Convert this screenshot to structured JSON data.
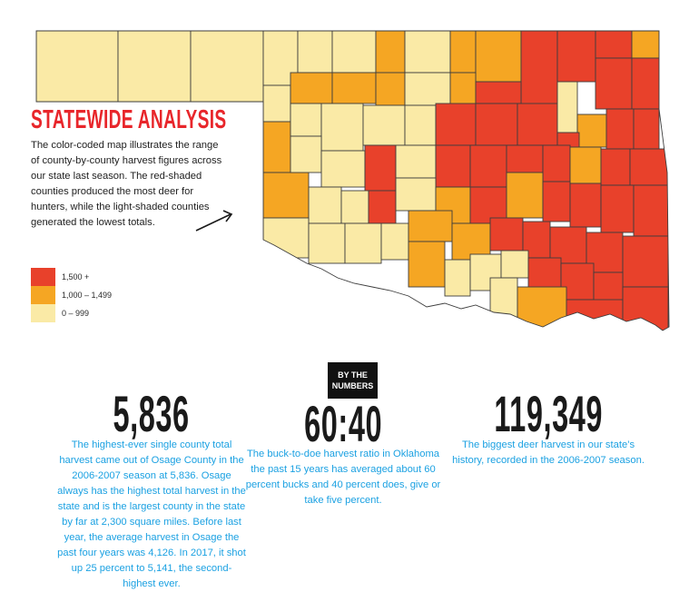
{
  "title": "STATEWIDE ANALYSIS",
  "description": "The color-coded map illustrates the range of county-by-county harvest figures across our state last season. The red-shaded counties produced the most deer for hunters, while the light-shaded counties generated the lowest totals.",
  "map": {
    "state": "Oklahoma",
    "colors": {
      "high": "#e8412b",
      "mid": "#f5a623",
      "low": "#faeaa6"
    }
  },
  "legend": [
    {
      "label": "1,500 +",
      "color": "#e8412b"
    },
    {
      "label": "1,000 – 1,499",
      "color": "#f5a623"
    },
    {
      "label": "0 – 999",
      "color": "#faeaa6"
    }
  ],
  "badge": {
    "line1": "BY THE",
    "line2": "NUMBERS"
  },
  "stats": [
    {
      "value": "5,836",
      "text": "The highest-ever single county total harvest came out of Osage County in the 2006-2007 season at 5,836. Osage always has the highest total harvest in the state and is the largest county in the state by far at 2,300 square miles. Before last year, the average harvest in Osage the past four years was 4,126. In 2017, it shot up 25 percent to 5,141, the second-highest ever."
    },
    {
      "value": "60:40",
      "text": "The buck-to-doe harvest ratio in Oklahoma the past 15 years has averaged about 60 percent bucks and 40 percent does, give or take five percent."
    },
    {
      "value": "119,349",
      "text": "The biggest deer harvest in our state’s history, recorded in the 2006-2007 season."
    }
  ]
}
